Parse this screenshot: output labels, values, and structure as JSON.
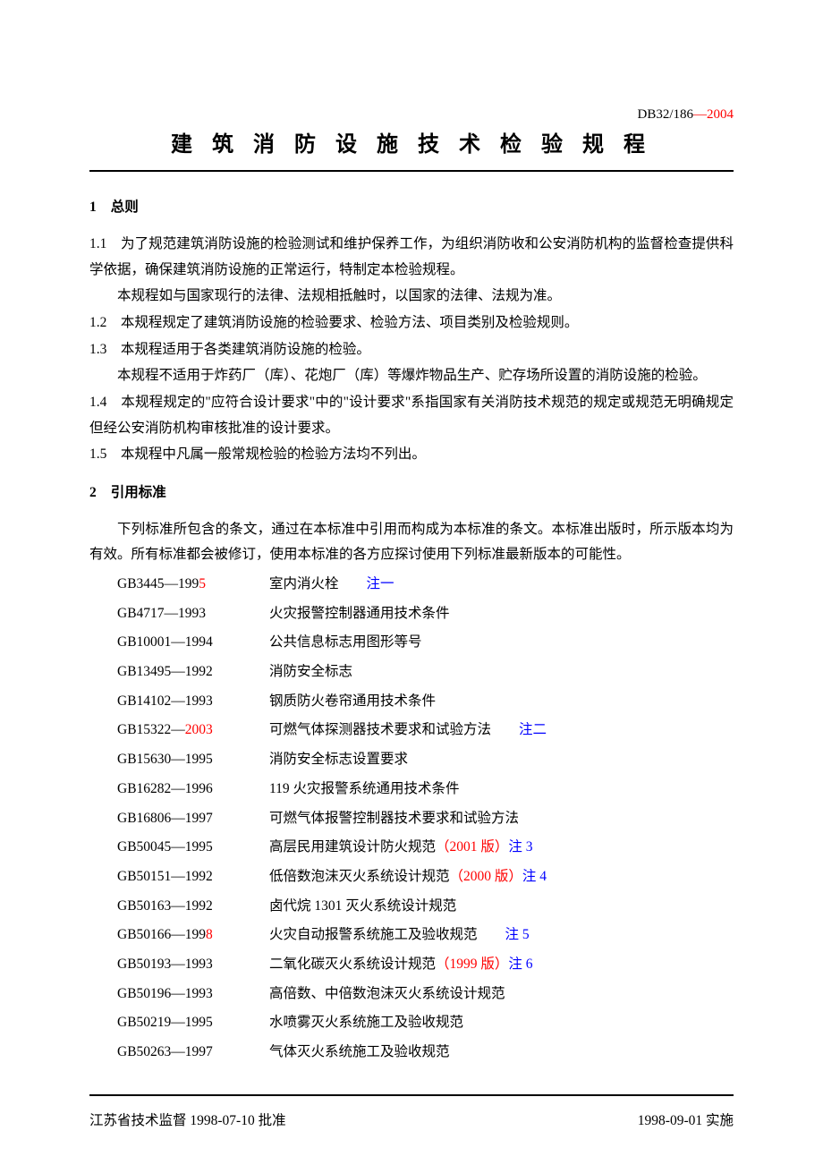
{
  "doc_code": {
    "prefix": "DB32/186",
    "dash": "—",
    "year": "2004"
  },
  "title": "建 筑 消 防 设 施 技 术 检 验 规 程",
  "section1": {
    "num": "1",
    "title": "总则",
    "p1_1": "1.1　为了规范建筑消防设施的检验测试和维护保养工作，为组织消防收和公安消防机构的监督检查提供科学依据，确保建筑消防设施的正常运行，特制定本检验规程。",
    "p1_note": "本规程如与国家现行的法律、法规相抵触时，以国家的法律、法规为准。",
    "p1_2": "1.2　本规程规定了建筑消防设施的检验要求、检验方法、项目类别及检验规则。",
    "p1_3": "1.3　本规程适用于各类建筑消防设施的检验。",
    "p1_3note": "本规程不适用于炸药厂（库）、花炮厂（库）等爆炸物品生产、贮存场所设置的消防设施的检验。",
    "p1_4": "1.4　本规程规定的\"应符合设计要求\"中的\"设计要求\"系指国家有关消防技术规范的规定或规范无明确规定但经公安消防机构审核批准的设计要求。",
    "p1_5": "1.5　本规程中凡属一般常规检验的检验方法均不列出。"
  },
  "section2": {
    "num": "2",
    "title": "引用标准",
    "intro": "下列标准所包含的条文，通过在本标准中引用而构成为本标准的条文。本标准出版时，所示版本均为有效。所有标准都会被修订，使用本标准的各方应探讨使用下列标准最新版本的可能性。"
  },
  "standards": [
    {
      "code_pre": "GB3445—199",
      "code_red": "5",
      "name": "室内消火栓",
      "note_red": "",
      "note_blue": "注一"
    },
    {
      "code_pre": "GB4717—1993",
      "code_red": "",
      "name": "火灾报警控制器通用技术条件",
      "note_red": "",
      "note_blue": ""
    },
    {
      "code_pre": "GB10001—1994",
      "code_red": "",
      "name": "公共信息标志用图形等号",
      "note_red": "",
      "note_blue": ""
    },
    {
      "code_pre": "GB13495—1992",
      "code_red": "",
      "name": "消防安全标志",
      "note_red": "",
      "note_blue": ""
    },
    {
      "code_pre": "GB14102—1993",
      "code_red": "",
      "name": "钢质防火卷帘通用技术条件",
      "note_red": "",
      "note_blue": ""
    },
    {
      "code_pre": "GB15322—",
      "code_red": "2003",
      "name": "可燃气体探测器技术要求和试验方法",
      "note_red": "",
      "note_blue": "注二"
    },
    {
      "code_pre": "GB15630—1995",
      "code_red": "",
      "name": "消防安全标志设置要求",
      "note_red": "",
      "note_blue": ""
    },
    {
      "code_pre": "GB16282—1996",
      "code_red": "",
      "name": "119 火灾报警系统通用技术条件",
      "note_red": "",
      "note_blue": ""
    },
    {
      "code_pre": "GB16806—1997",
      "code_red": "",
      "name": "可燃气体报警控制器技术要求和试验方法",
      "note_red": "",
      "note_blue": ""
    },
    {
      "code_pre": "GB50045—1995",
      "code_red": "",
      "name": "高层民用建筑设计防火规范",
      "note_red": "（2001 版）",
      "note_blue": "注 3"
    },
    {
      "code_pre": "GB50151—1992",
      "code_red": "",
      "name": "低倍数泡沫灭火系统设计规范",
      "note_red": "（2000 版）",
      "note_blue": "注 4"
    },
    {
      "code_pre": "GB50163—1992",
      "code_red": "",
      "name": "卤代烷 1301 灭火系统设计规范",
      "note_red": "",
      "note_blue": ""
    },
    {
      "code_pre": "GB50166—199",
      "code_red": "8",
      "name": "火灾自动报警系统施工及验收规范",
      "note_red": "",
      "note_blue": "注 5"
    },
    {
      "code_pre": "GB50193—1993",
      "code_red": "",
      "name": "二氧化碳灭火系统设计规范",
      "note_red": "（1999 版）",
      "note_blue": "注 6"
    },
    {
      "code_pre": "GB50196—1993",
      "code_red": "",
      "name": "高倍数、中倍数泡沫灭火系统设计规范",
      "note_red": "",
      "note_blue": ""
    },
    {
      "code_pre": "GB50219—1995",
      "code_red": "",
      "name": "水喷雾灭火系统施工及验收规范",
      "note_red": "",
      "note_blue": ""
    },
    {
      "code_pre": "GB50263—1997",
      "code_red": "",
      "name": "气体灭火系统施工及验收规范",
      "note_red": "",
      "note_blue": ""
    }
  ],
  "footer": {
    "left": "江苏省技术监督 1998-07-10 批准",
    "right": "1998-09-01 实施"
  },
  "colors": {
    "text": "#000000",
    "red": "#ff0000",
    "blue": "#0000ff",
    "bg": "#ffffff"
  }
}
